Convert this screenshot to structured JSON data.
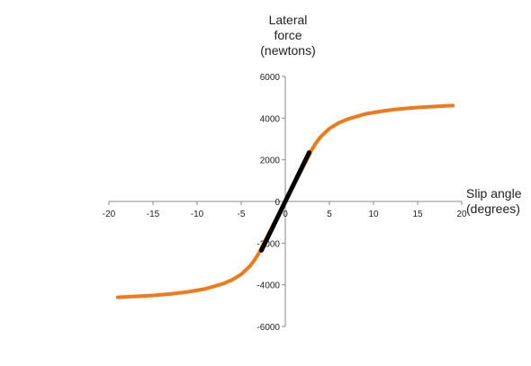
{
  "chart_data": {
    "type": "line",
    "ylabel_lines": [
      "Lateral",
      "force",
      "(newtons)"
    ],
    "xlabel_lines": [
      "Slip angle",
      "(degrees)"
    ],
    "xlim": [
      -20,
      20
    ],
    "ylim": [
      -6000,
      6000
    ],
    "x_ticks": [
      -20,
      -15,
      -10,
      -5,
      0,
      5,
      10,
      15,
      20
    ],
    "y_ticks": [
      -6000,
      -4000,
      -2000,
      0,
      2000,
      4000,
      6000
    ],
    "grid": false,
    "series": [
      {
        "color": "#f07a1a",
        "x": [
          -19,
          -17,
          -15,
          -13,
          -11,
          -9,
          -7,
          -6,
          -5,
          -4,
          -3.5,
          -3,
          -2.5,
          -2,
          -1,
          0,
          1,
          2,
          2.5,
          3,
          3.5,
          4,
          5,
          6,
          7,
          9,
          11,
          13,
          15,
          17,
          19
        ],
        "y": [
          -4600,
          -4560,
          -4510,
          -4440,
          -4340,
          -4190,
          -3940,
          -3760,
          -3500,
          -3100,
          -2820,
          -2480,
          -2050,
          -1640,
          -820,
          0,
          820,
          1640,
          2050,
          2480,
          2820,
          3100,
          3500,
          3760,
          3940,
          4190,
          4340,
          4440,
          4510,
          4560,
          4600
        ]
      },
      {
        "color": "#000000",
        "x": [
          -2.7,
          2.7
        ],
        "y": [
          -2350,
          2350
        ]
      }
    ]
  }
}
